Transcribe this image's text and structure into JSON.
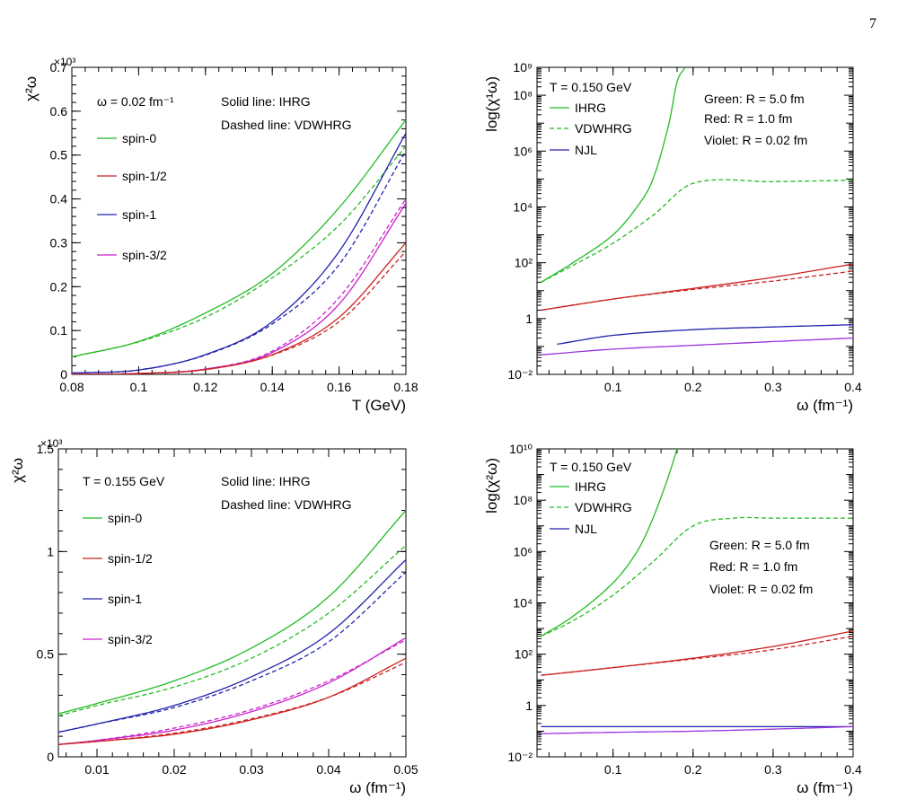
{
  "page": {
    "number": "7"
  },
  "chart_data": [
    {
      "type": "line",
      "id": "top-left",
      "xlabel": "T (GeV)",
      "ylabel": "χ²ω",
      "exponent": "×10³",
      "xlim": [
        0.08,
        0.18
      ],
      "ylim": [
        0,
        0.7
      ],
      "log_y": false,
      "xticks": [
        0.08,
        0.1,
        0.12,
        0.14,
        0.16,
        0.18
      ],
      "xtick_labels": [
        "0.08",
        "0.1",
        "0.12",
        "0.14",
        "0.16",
        "0.18"
      ],
      "yticks": [
        0,
        0.1,
        0.2,
        0.3,
        0.4,
        0.5,
        0.6,
        0.7
      ],
      "ytick_labels": [
        "0",
        "0.1",
        "0.2",
        "0.3",
        "0.4",
        "0.5",
        "0.6",
        "0.7"
      ],
      "annotations": [
        "ω = 0.02 fm⁻¹",
        "Solid line: IHRG",
        "Dashed line: VDWHRG"
      ],
      "legend": [
        {
          "label": "spin-0",
          "color": "#22bb22"
        },
        {
          "label": "spin-1/2",
          "color": "#cc2222"
        },
        {
          "label": "spin-1",
          "color": "#2222aa"
        },
        {
          "label": "spin-3/2",
          "color": "#cc22cc"
        }
      ],
      "series": [
        {
          "name": "spin-0",
          "style": "solid",
          "color": "#22bb22",
          "x": [
            0.08,
            0.1,
            0.12,
            0.14,
            0.16,
            0.18
          ],
          "y": [
            0.04,
            0.075,
            0.14,
            0.23,
            0.38,
            0.58
          ]
        },
        {
          "name": "spin-0",
          "style": "dashed",
          "color": "#22bb22",
          "x": [
            0.08,
            0.1,
            0.12,
            0.14,
            0.16,
            0.18
          ],
          "y": [
            0.04,
            0.074,
            0.13,
            0.22,
            0.34,
            0.52
          ]
        },
        {
          "name": "spin-1",
          "style": "solid",
          "color": "#2222aa",
          "x": [
            0.08,
            0.1,
            0.12,
            0.14,
            0.16,
            0.18
          ],
          "y": [
            0.003,
            0.01,
            0.045,
            0.12,
            0.28,
            0.55
          ]
        },
        {
          "name": "spin-1",
          "style": "dashed",
          "color": "#2222aa",
          "x": [
            0.08,
            0.1,
            0.12,
            0.14,
            0.16,
            0.18
          ],
          "y": [
            0.003,
            0.01,
            0.044,
            0.115,
            0.25,
            0.51
          ]
        },
        {
          "name": "spin-3/2",
          "style": "solid",
          "color": "#cc22cc",
          "x": [
            0.08,
            0.1,
            0.12,
            0.14,
            0.16,
            0.18
          ],
          "y": [
            0,
            0.002,
            0.012,
            0.05,
            0.16,
            0.39
          ]
        },
        {
          "name": "spin-3/2",
          "style": "dashed",
          "color": "#cc22cc",
          "x": [
            0.08,
            0.1,
            0.12,
            0.14,
            0.16,
            0.18
          ],
          "y": [
            0,
            0.002,
            0.012,
            0.053,
            0.175,
            0.4
          ]
        },
        {
          "name": "spin-1/2",
          "style": "solid",
          "color": "#cc2222",
          "x": [
            0.08,
            0.1,
            0.12,
            0.14,
            0.16,
            0.18
          ],
          "y": [
            0,
            0.002,
            0.011,
            0.045,
            0.13,
            0.3
          ]
        },
        {
          "name": "spin-1/2",
          "style": "dashed",
          "color": "#cc2222",
          "x": [
            0.08,
            0.1,
            0.12,
            0.14,
            0.16,
            0.18
          ],
          "y": [
            0,
            0.002,
            0.011,
            0.044,
            0.12,
            0.28
          ]
        }
      ]
    },
    {
      "type": "line",
      "id": "top-right",
      "xlabel": "ω (fm⁻¹)",
      "ylabel": "log(χ¹ω)",
      "xlim": [
        0.005,
        0.4
      ],
      "ylim": [
        0.01,
        1000000000
      ],
      "log_y": true,
      "xticks": [
        0.1,
        0.2,
        0.3,
        0.4
      ],
      "xtick_labels": [
        "0.1",
        "0.2",
        "0.3",
        "0.4"
      ],
      "yticks": [
        0.01,
        1,
        100,
        10000,
        1000000,
        100000000,
        1000000000
      ],
      "ytick_labels": [
        "10⁻²",
        "1",
        "10²",
        "10⁴",
        "10⁶",
        "10⁸",
        "10⁹"
      ],
      "annotations": [
        "T = 0.150 GeV",
        "Green: R = 5.0 fm",
        "Red: R = 1.0 fm",
        "Violet: R = 0.02 fm"
      ],
      "legend": [
        {
          "label": "IHRG",
          "color": "#22bb22",
          "style": "solid"
        },
        {
          "label": "VDWHRG",
          "color": "#22bb22",
          "style": "dashed"
        },
        {
          "label": "NJL",
          "color": "#2222aa",
          "style": "solid"
        }
      ],
      "series": [
        {
          "name": "IHRG",
          "style": "solid",
          "color": "#22bb22",
          "x": [
            0.01,
            0.05,
            0.1,
            0.13,
            0.15,
            0.17,
            0.18,
            0.19
          ],
          "y": [
            20,
            100,
            1000,
            10000,
            100000,
            10000000,
            300000000,
            1000000000
          ]
        },
        {
          "name": "VDWHRG",
          "style": "dashed",
          "color": "#22bb22",
          "x": [
            0.01,
            0.05,
            0.1,
            0.15,
            0.2,
            0.3,
            0.4
          ],
          "y": [
            20,
            80,
            500,
            5000,
            70000,
            80000,
            90000
          ]
        },
        {
          "style": "solid",
          "color": "#cc2222",
          "x": [
            0.01,
            0.1,
            0.2,
            0.3,
            0.4
          ],
          "y": [
            2,
            5,
            12,
            30,
            90
          ]
        },
        {
          "style": "dashed",
          "color": "#cc2222",
          "x": [
            0.01,
            0.1,
            0.2,
            0.3,
            0.4
          ],
          "y": [
            2,
            5,
            11,
            22,
            50
          ]
        },
        {
          "name": "NJL",
          "style": "solid",
          "color": "#2222aa",
          "x": [
            0.03,
            0.1,
            0.2,
            0.3,
            0.4
          ],
          "y": [
            0.12,
            0.25,
            0.4,
            0.5,
            0.6
          ]
        },
        {
          "style": "solid",
          "color": "#9933dd",
          "x": [
            0.01,
            0.1,
            0.2,
            0.3,
            0.4
          ],
          "y": [
            0.05,
            0.08,
            0.11,
            0.15,
            0.2
          ]
        }
      ]
    },
    {
      "type": "line",
      "id": "bottom-left",
      "xlabel": "ω (fm⁻¹)",
      "ylabel": "χ²ω",
      "exponent": "×10³",
      "xlim": [
        0.005,
        0.05
      ],
      "ylim": [
        0,
        1.5
      ],
      "log_y": false,
      "xticks": [
        0.01,
        0.02,
        0.03,
        0.04,
        0.05
      ],
      "xtick_labels": [
        "0.01",
        "0.02",
        "0.03",
        "0.04",
        "0.05"
      ],
      "yticks": [
        0,
        0.5,
        1,
        1.5
      ],
      "ytick_labels": [
        "0",
        "0.5",
        "1",
        "1.5"
      ],
      "annotations": [
        "T = 0.155 GeV",
        "Solid line: IHRG",
        "Dashed line: VDWHRG"
      ],
      "legend": [
        {
          "label": "spin-0",
          "color": "#22bb22"
        },
        {
          "label": "spin-1/2",
          "color": "#cc2222"
        },
        {
          "label": "spin-1",
          "color": "#2222aa"
        },
        {
          "label": "spin-3/2",
          "color": "#cc22cc"
        }
      ],
      "series": [
        {
          "name": "spin-0",
          "style": "solid",
          "color": "#22bb22",
          "x": [
            0.005,
            0.01,
            0.02,
            0.03,
            0.04,
            0.05
          ],
          "y": [
            0.21,
            0.26,
            0.37,
            0.53,
            0.78,
            1.2
          ]
        },
        {
          "name": "spin-0",
          "style": "dashed",
          "color": "#22bb22",
          "x": [
            0.005,
            0.01,
            0.02,
            0.03,
            0.04,
            0.05
          ],
          "y": [
            0.2,
            0.25,
            0.34,
            0.48,
            0.7,
            1.03
          ]
        },
        {
          "name": "spin-1",
          "style": "solid",
          "color": "#2222aa",
          "x": [
            0.005,
            0.01,
            0.02,
            0.03,
            0.04,
            0.05
          ],
          "y": [
            0.12,
            0.16,
            0.25,
            0.39,
            0.6,
            0.96
          ]
        },
        {
          "name": "spin-1",
          "style": "dashed",
          "color": "#2222aa",
          "x": [
            0.005,
            0.01,
            0.02,
            0.03,
            0.04,
            0.05
          ],
          "y": [
            0.12,
            0.16,
            0.24,
            0.37,
            0.56,
            0.9
          ]
        },
        {
          "name": "spin-3/2",
          "style": "solid",
          "color": "#cc22cc",
          "x": [
            0.005,
            0.01,
            0.02,
            0.03,
            0.04,
            0.05
          ],
          "y": [
            0.06,
            0.08,
            0.13,
            0.22,
            0.36,
            0.58
          ]
        },
        {
          "name": "spin-3/2",
          "style": "dashed",
          "color": "#cc22cc",
          "x": [
            0.005,
            0.01,
            0.02,
            0.03,
            0.04,
            0.05
          ],
          "y": [
            0.06,
            0.08,
            0.14,
            0.23,
            0.37,
            0.57
          ]
        },
        {
          "name": "spin-1/2",
          "style": "solid",
          "color": "#cc2222",
          "x": [
            0.005,
            0.01,
            0.02,
            0.03,
            0.04,
            0.05
          ],
          "y": [
            0.06,
            0.075,
            0.11,
            0.18,
            0.29,
            0.48
          ]
        },
        {
          "name": "spin-1/2",
          "style": "dashed",
          "color": "#cc2222",
          "x": [
            0.005,
            0.01,
            0.02,
            0.03,
            0.04,
            0.05
          ],
          "y": [
            0.06,
            0.075,
            0.115,
            0.185,
            0.29,
            0.46
          ]
        }
      ]
    },
    {
      "type": "line",
      "id": "bottom-right",
      "xlabel": "ω (fm⁻¹)",
      "ylabel": "log(χ²ω)",
      "xlim": [
        0.005,
        0.4
      ],
      "ylim": [
        0.01,
        10000000000
      ],
      "log_y": true,
      "xticks": [
        0.1,
        0.2,
        0.3,
        0.4
      ],
      "xtick_labels": [
        "0.1",
        "0.2",
        "0.3",
        "0.4"
      ],
      "yticks": [
        0.01,
        1,
        100,
        10000,
        1000000,
        100000000,
        10000000000
      ],
      "ytick_labels": [
        "10⁻²",
        "1",
        "10²",
        "10⁴",
        "10⁶",
        "10⁸",
        "10¹⁰"
      ],
      "annotations": [
        "T = 0.150 GeV",
        "Green: R = 5.0 fm",
        "Red: R = 1.0 fm",
        "Violet: R = 0.02 fm"
      ],
      "legend": [
        {
          "label": "IHRG",
          "color": "#22bb22",
          "style": "solid"
        },
        {
          "label": "VDWHRG",
          "color": "#22bb22",
          "style": "dashed"
        },
        {
          "label": "NJL",
          "color": "#2222aa",
          "style": "solid"
        }
      ],
      "series": [
        {
          "name": "IHRG",
          "style": "solid",
          "color": "#22bb22",
          "x": [
            0.01,
            0.05,
            0.1,
            0.13,
            0.15,
            0.17,
            0.18
          ],
          "y": [
            500,
            3000,
            60000,
            1000000,
            20000000,
            1000000000,
            10000000000
          ]
        },
        {
          "name": "VDWHRG",
          "style": "dashed",
          "color": "#22bb22",
          "x": [
            0.01,
            0.05,
            0.1,
            0.15,
            0.2,
            0.25,
            0.3,
            0.4
          ],
          "y": [
            500,
            2000,
            20000,
            400000,
            10000000,
            20000000,
            20000000,
            20000000
          ]
        },
        {
          "style": "solid",
          "color": "#cc2222",
          "x": [
            0.01,
            0.1,
            0.2,
            0.3,
            0.4
          ],
          "y": [
            15,
            30,
            70,
            200,
            800
          ]
        },
        {
          "style": "dashed",
          "color": "#cc2222",
          "x": [
            0.01,
            0.1,
            0.2,
            0.3,
            0.4
          ],
          "y": [
            15,
            30,
            65,
            150,
            500
          ]
        },
        {
          "name": "NJL",
          "style": "solid",
          "color": "#2222aa",
          "x": [
            0.01,
            0.1,
            0.2,
            0.3,
            0.4
          ],
          "y": [
            0.15,
            0.15,
            0.15,
            0.15,
            0.15
          ]
        },
        {
          "style": "solid",
          "color": "#9933dd",
          "x": [
            0.01,
            0.1,
            0.2,
            0.3,
            0.4
          ],
          "y": [
            0.08,
            0.09,
            0.1,
            0.12,
            0.15
          ]
        }
      ]
    }
  ]
}
